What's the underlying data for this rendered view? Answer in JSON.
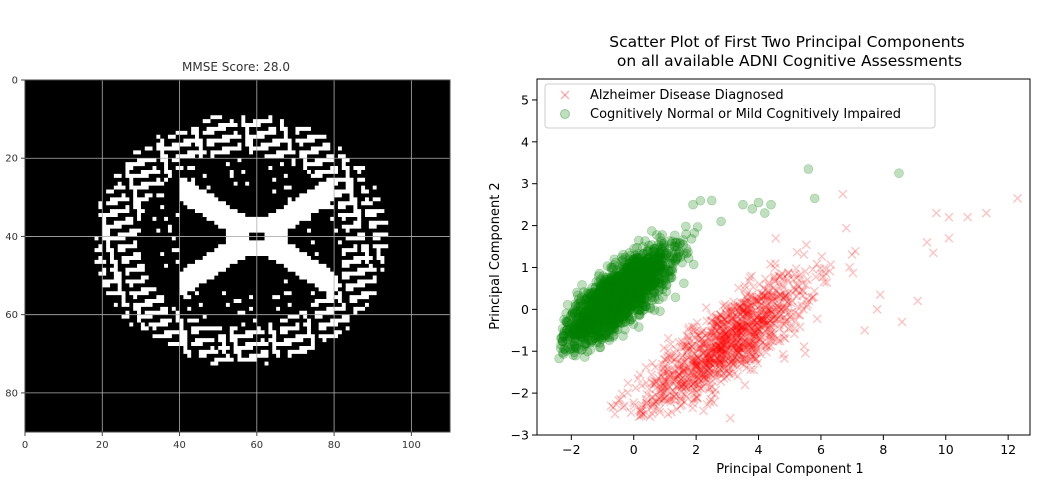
{
  "chart_data": [
    {
      "type": "heatmap",
      "title": "MMSE Score: 28.0",
      "colormap": "binary image, white on black",
      "grid": true,
      "xlim": [
        0,
        110
      ],
      "ylim_inverted": [
        90,
        0
      ],
      "xticks": [
        0,
        20,
        40,
        60,
        80,
        100
      ],
      "yticks": [
        0,
        20,
        40,
        60,
        80
      ],
      "brain_mask": {
        "outline_center": [
          56,
          41
        ],
        "outline_radius": [
          37,
          31
        ],
        "ventricle_center": [
          60,
          40
        ],
        "description": "axial brain slice segmentation with central butterfly-shaped ventricles"
      }
    },
    {
      "type": "scatter",
      "title": "Scatter Plot of First Two Principal Components\n on all available ADNI Cognitive Assessments",
      "xlabel": "Principal Component 1",
      "ylabel": "Principal Component 2",
      "xlim": [
        -3.1,
        12.7
      ],
      "ylim": [
        -3,
        5.5
      ],
      "xticks": [
        -2,
        0,
        2,
        4,
        6,
        8,
        10,
        12
      ],
      "yticks": [
        -3,
        -2,
        -1,
        0,
        1,
        2,
        3,
        4,
        5
      ],
      "legend_location": "upper-left",
      "series": [
        {
          "name": "Alzheimer Disease Diagnosed",
          "marker": "x",
          "color": "#ff0000",
          "alpha": 0.25,
          "n_points": 1200,
          "cluster_center": [
            3.0,
            -0.8
          ],
          "cluster_trend_slope": 0.55,
          "x_range": [
            -0.9,
            12.3
          ],
          "y_range": [
            -2.6,
            2.7
          ],
          "outliers": [
            [
              12.3,
              2.65
            ],
            [
              11.3,
              2.3
            ],
            [
              10.7,
              2.2
            ],
            [
              9.7,
              2.3
            ],
            [
              10.1,
              1.7
            ],
            [
              9.4,
              1.6
            ],
            [
              9.6,
              1.35
            ],
            [
              10.1,
              2.2
            ],
            [
              9.1,
              0.2
            ],
            [
              8.6,
              -0.3
            ],
            [
              7.4,
              -0.5
            ],
            [
              7.8,
              0.0
            ],
            [
              6.7,
              2.75
            ],
            [
              7.9,
              0.35
            ],
            [
              0.3,
              -2.5
            ],
            [
              -0.6,
              -2.5
            ],
            [
              -0.3,
              -2.3
            ],
            [
              0.5,
              -1.9
            ],
            [
              5.5,
              -1.05
            ]
          ]
        },
        {
          "name": "Cognitively Normal or Mild Cognitively Impaired",
          "marker": "o",
          "color": "#008000",
          "alpha": 0.25,
          "n_points": 2200,
          "cluster_center": [
            -0.5,
            0.3
          ],
          "cluster_trend_slope": 0.6,
          "x_range": [
            -2.4,
            8.6
          ],
          "y_range": [
            -1.2,
            3.4
          ],
          "outliers": [
            [
              5.6,
              3.35
            ],
            [
              8.5,
              3.25
            ],
            [
              5.8,
              2.65
            ],
            [
              4.4,
              2.5
            ],
            [
              4.2,
              2.3
            ],
            [
              3.8,
              2.4
            ],
            [
              3.5,
              2.5
            ],
            [
              2.5,
              2.6
            ],
            [
              2.8,
              2.1
            ],
            [
              1.9,
              2.5
            ],
            [
              4.0,
              2.55
            ]
          ]
        }
      ]
    }
  ]
}
